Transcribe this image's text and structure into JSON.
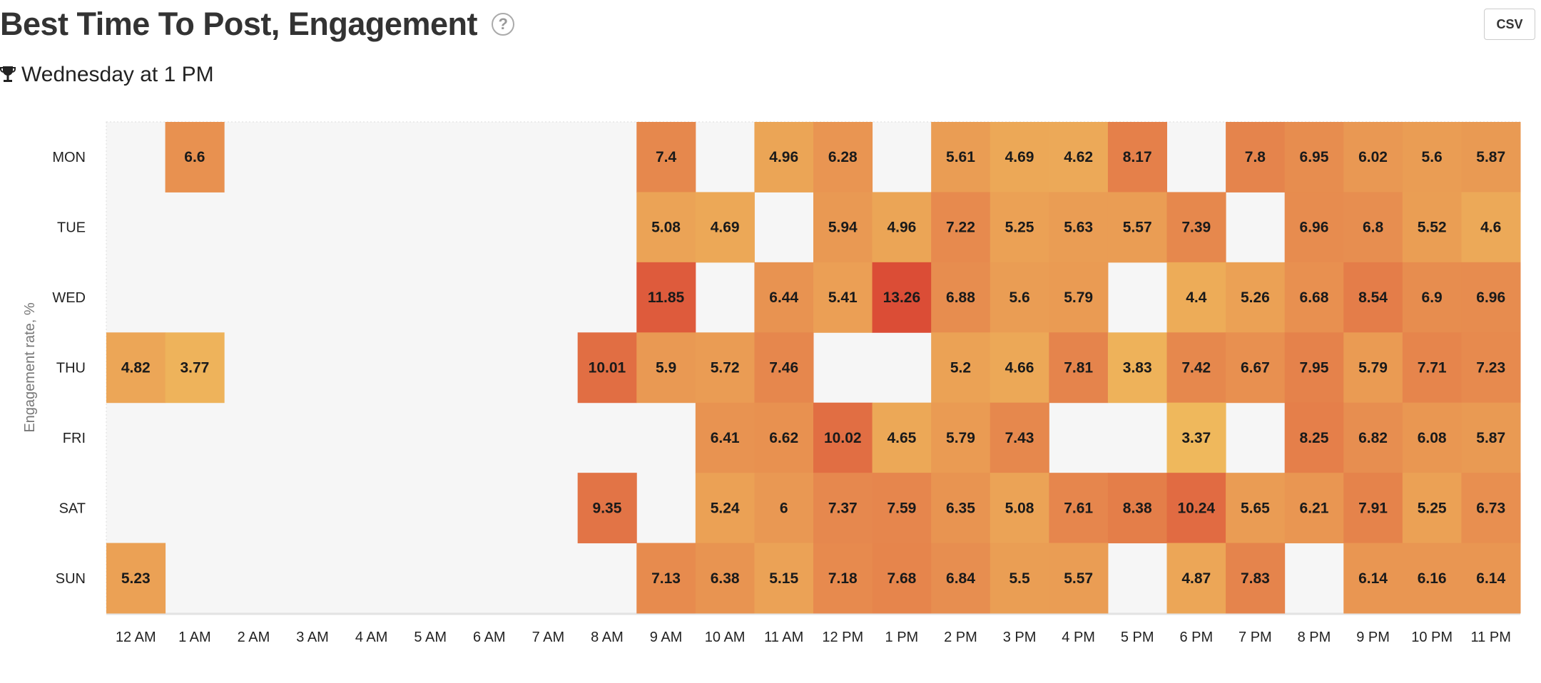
{
  "header": {
    "title": "Best Time To Post, Engagement",
    "help_icon": "question-circle-icon",
    "best_time_icon": "trophy-icon",
    "best_time": "Wednesday at 1 PM",
    "csv_label": "CSV"
  },
  "chart_data": {
    "type": "heatmap",
    "ylabel": "Engagement rate, %",
    "xlabel": "",
    "x_categories": [
      "12 AM",
      "1 AM",
      "2 AM",
      "3 AM",
      "4 AM",
      "5 AM",
      "6 AM",
      "7 AM",
      "8 AM",
      "9 AM",
      "10 AM",
      "11 AM",
      "12 PM",
      "1 PM",
      "2 PM",
      "3 PM",
      "4 PM",
      "5 PM",
      "6 PM",
      "7 PM",
      "8 PM",
      "9 PM",
      "10 PM",
      "11 PM"
    ],
    "y_categories": [
      "MON",
      "TUE",
      "WED",
      "THU",
      "FRI",
      "SAT",
      "SUN"
    ],
    "values": [
      [
        null,
        6.6,
        null,
        null,
        null,
        null,
        null,
        null,
        null,
        7.4,
        null,
        4.96,
        6.28,
        null,
        5.61,
        4.69,
        4.62,
        8.17,
        null,
        7.8,
        6.95,
        6.02,
        5.6,
        5.87
      ],
      [
        null,
        null,
        null,
        null,
        null,
        null,
        null,
        null,
        null,
        5.08,
        4.69,
        null,
        5.94,
        4.96,
        7.22,
        5.25,
        5.63,
        5.57,
        7.39,
        null,
        6.96,
        6.8,
        5.52,
        4.6
      ],
      [
        null,
        null,
        null,
        null,
        null,
        null,
        null,
        null,
        null,
        11.85,
        null,
        6.44,
        5.41,
        13.26,
        6.88,
        5.6,
        5.79,
        null,
        4.4,
        5.26,
        6.68,
        8.54,
        6.9,
        6.96
      ],
      [
        4.82,
        3.77,
        null,
        null,
        null,
        null,
        null,
        null,
        10.01,
        5.9,
        5.72,
        7.46,
        null,
        null,
        5.2,
        4.66,
        7.81,
        3.83,
        7.42,
        6.67,
        7.95,
        5.79,
        7.71,
        7.23
      ],
      [
        null,
        null,
        null,
        null,
        null,
        null,
        null,
        null,
        null,
        null,
        6.41,
        6.62,
        10.02,
        4.65,
        5.79,
        7.43,
        null,
        null,
        3.37,
        null,
        8.25,
        6.82,
        6.08,
        5.87
      ],
      [
        null,
        null,
        null,
        null,
        null,
        null,
        null,
        null,
        9.35,
        null,
        5.24,
        6,
        7.37,
        7.59,
        6.35,
        5.08,
        7.61,
        8.38,
        10.24,
        5.65,
        6.21,
        7.91,
        5.25,
        6.73
      ],
      [
        5.23,
        null,
        null,
        null,
        null,
        null,
        null,
        null,
        null,
        7.13,
        6.38,
        5.15,
        7.18,
        7.68,
        6.84,
        5.5,
        5.57,
        null,
        4.87,
        7.83,
        null,
        6.14,
        6.16,
        6.14
      ]
    ],
    "color_scale": {
      "low": "#efb85c",
      "mid": "#e78c4f",
      "high": "#db4d36"
    },
    "empty_color": "#f6f6f6",
    "grid": false,
    "legend": "none"
  }
}
